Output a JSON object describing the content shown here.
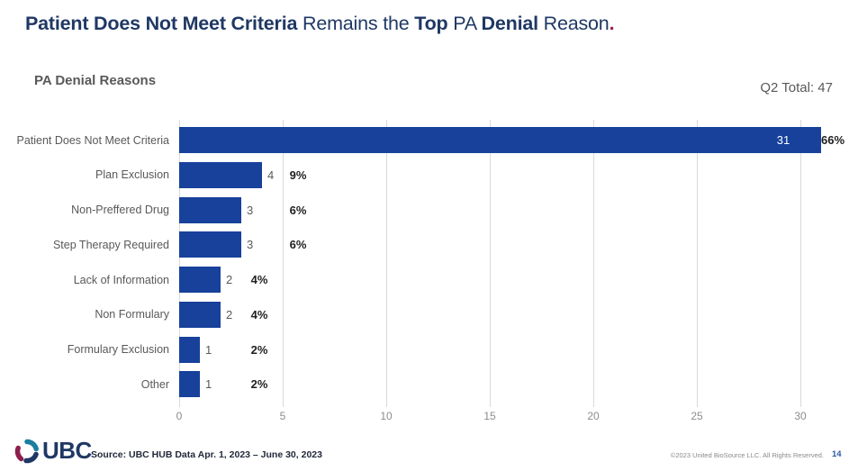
{
  "title": {
    "segments": [
      {
        "text": "Patient Does Not Meet Criteria",
        "bold": true,
        "accent": false
      },
      {
        "text": " Remains the ",
        "bold": false,
        "accent": false
      },
      {
        "text": "Top",
        "bold": true,
        "accent": false
      },
      {
        "text": " PA ",
        "bold": false,
        "accent": false
      },
      {
        "text": "Denial",
        "bold": true,
        "accent": false
      },
      {
        "text": " Reason",
        "bold": false,
        "accent": false
      },
      {
        "text": ".",
        "bold": true,
        "accent": true
      }
    ],
    "accent_color": "#9E1B4E",
    "text_color": "#1F3864"
  },
  "header": {
    "chart_title": "PA Denial Reasons",
    "total_label": "Q2 Total: 47"
  },
  "chart_data": {
    "type": "bar",
    "orientation": "horizontal",
    "title": "PA Denial Reasons",
    "categories": [
      "Patient Does Not Meet Criteria",
      "Plan Exclusion",
      "Non-Preffered Drug",
      "Step Therapy Required",
      "Lack of Information",
      "Non Formulary",
      "Formulary Exclusion",
      "Other"
    ],
    "values": [
      31,
      4,
      3,
      3,
      2,
      2,
      1,
      1
    ],
    "percent_labels": [
      "66%",
      "9%",
      "6%",
      "6%",
      "4%",
      "4%",
      "2%",
      "2%"
    ],
    "total": 47,
    "x_ticks": [
      0,
      5,
      10,
      15,
      20,
      25,
      30
    ],
    "xlim": [
      0,
      32
    ],
    "grid": true,
    "bar_color": "#17419B",
    "xlabel": "",
    "ylabel": ""
  },
  "footer": {
    "logo_text": "UBC",
    "source": "Source: UBC HUB Data Apr. 1, 2023 – June 30, 2023",
    "copyright": "©2023 United BioSource LLC. All Rights Reserved.",
    "page_number": "14",
    "logo_colors": {
      "teal": "#1B7EA1",
      "navy": "#1F3864",
      "maroon": "#8E1F4D"
    }
  }
}
